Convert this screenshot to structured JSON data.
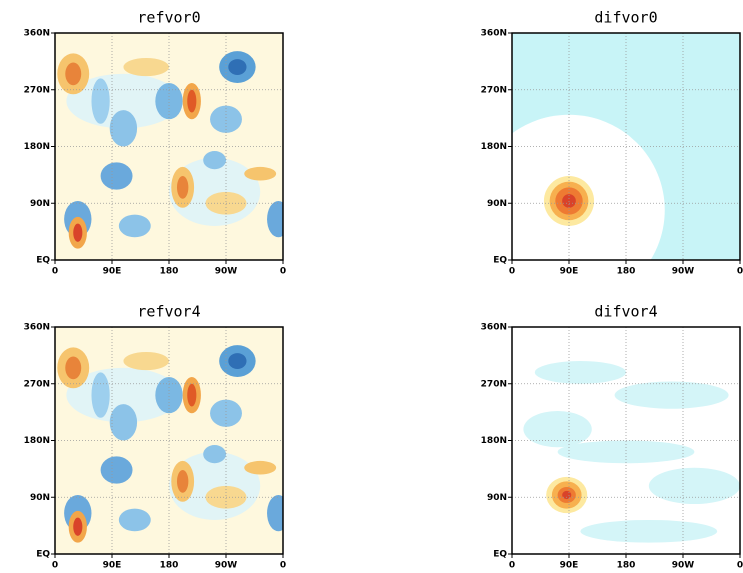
{
  "chart_data": [
    {
      "type": "contour",
      "title": "refvor0",
      "xlim": [
        0,
        360
      ],
      "ylim": [
        0,
        360
      ],
      "xticks": [
        0,
        {
          "value": 90,
          "label": "90E"
        },
        180,
        {
          "value": 270,
          "label": "90W"
        },
        {
          "value": 360,
          "label": "0"
        }
      ],
      "yticks": [
        {
          "value": 0,
          "label": "EQ"
        },
        {
          "value": 90,
          "label": "90N"
        },
        {
          "value": 180,
          "label": "180N"
        },
        {
          "value": 270,
          "label": "270N"
        },
        {
          "value": 360,
          "label": "360N"
        }
      ],
      "grid": true
    },
    {
      "type": "contour",
      "title": "difvor0",
      "xlim": [
        0,
        360
      ],
      "ylim": [
        0,
        360
      ],
      "xticks": [
        0,
        {
          "value": 90,
          "label": "90E"
        },
        180,
        {
          "value": 270,
          "label": "90W"
        },
        {
          "value": 360,
          "label": "0"
        }
      ],
      "yticks": [
        {
          "value": 0,
          "label": "EQ"
        },
        {
          "value": 90,
          "label": "90N"
        },
        {
          "value": 180,
          "label": "180N"
        },
        {
          "value": 270,
          "label": "270N"
        },
        {
          "value": 360,
          "label": "360N"
        }
      ],
      "grid": true
    },
    {
      "type": "contour",
      "title": "refvor4",
      "xlim": [
        0,
        360
      ],
      "ylim": [
        0,
        360
      ],
      "xticks": [
        0,
        {
          "value": 90,
          "label": "90E"
        },
        180,
        {
          "value": 270,
          "label": "90W"
        },
        {
          "value": 360,
          "label": "0"
        }
      ],
      "yticks": [
        {
          "value": 0,
          "label": "EQ"
        },
        {
          "value": 90,
          "label": "90N"
        },
        {
          "value": 180,
          "label": "180N"
        },
        {
          "value": 270,
          "label": "270N"
        },
        {
          "value": 360,
          "label": "360N"
        }
      ],
      "grid": true
    },
    {
      "type": "contour",
      "title": "difvor4",
      "xlim": [
        0,
        360
      ],
      "ylim": [
        0,
        360
      ],
      "xticks": [
        0,
        {
          "value": 90,
          "label": "90E"
        },
        180,
        {
          "value": 270,
          "label": "90W"
        },
        {
          "value": 360,
          "label": "0"
        }
      ],
      "yticks": [
        {
          "value": 0,
          "label": "EQ"
        },
        {
          "value": 90,
          "label": "90N"
        },
        {
          "value": 180,
          "label": "180N"
        },
        {
          "value": 270,
          "label": "270N"
        },
        {
          "value": 360,
          "label": "360N"
        }
      ],
      "grid": true
    }
  ]
}
